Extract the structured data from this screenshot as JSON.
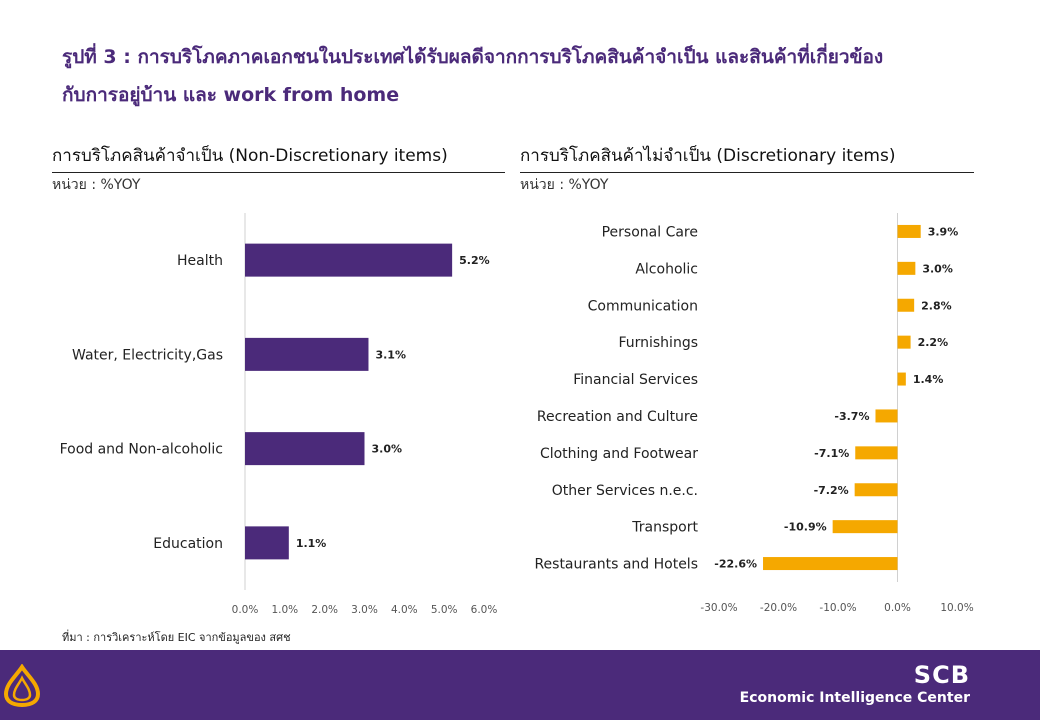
{
  "header": {
    "title_line1": "รูปที่ 3 : การบริโภคภาคเอกชนในประเทศได้รับผลดีจากการบริโภคสินค้าจำเป็น และสินค้าที่เกี่ยวข้อง",
    "title_line2": "กับการอยู่บ้าน และ work from home"
  },
  "source": "ที่มา : การวิเคราะห์โดย EIC จากข้อมูลของ สศช",
  "footer": {
    "brand": "SCB",
    "subtitle": "Economic Intelligence Center"
  },
  "colors": {
    "title": "#4b2a7a",
    "left_bar": "#4b2a7a",
    "right_bar": "#f5a800",
    "footer_bg": "#4b2a7a",
    "logo": "#f5a800"
  },
  "chart_data": [
    {
      "type": "bar",
      "orientation": "horizontal",
      "title": "การบริโภคสินค้าจำเป็น  (Non-Discretionary items)",
      "unit": "หน่วย : %YOY",
      "categories": [
        "Health",
        "Water, Electricity,Gas",
        "Food and Non-alcoholic",
        "Education"
      ],
      "values": [
        5.2,
        3.1,
        3.0,
        1.1
      ],
      "value_labels": [
        "5.2%",
        "3.1%",
        "3.0%",
        "1.1%"
      ],
      "xlim": [
        0,
        6
      ],
      "ticks": [
        "0.0%",
        "1.0%",
        "2.0%",
        "3.0%",
        "4.0%",
        "5.0%",
        "6.0%"
      ],
      "grid": false
    },
    {
      "type": "bar",
      "orientation": "horizontal",
      "title": "การบริโภคสินค้าไม่จำเป็น  (Discretionary items)",
      "unit": "หน่วย : %YOY",
      "categories": [
        "Personal Care",
        "Alcoholic",
        "Communication",
        "Furnishings",
        "Financial Services",
        "Recreation and Culture",
        "Clothing and Footwear",
        "Other Services n.e.c.",
        "Transport",
        "Restaurants and Hotels"
      ],
      "values": [
        3.9,
        3.0,
        2.8,
        2.2,
        1.4,
        -3.7,
        -7.1,
        -7.2,
        -10.9,
        -22.6
      ],
      "value_labels": [
        "3.9%",
        "3.0%",
        "2.8%",
        "2.2%",
        "1.4%",
        "-3.7%",
        "-7.1%",
        "-7.2%",
        "-10.9%",
        "-22.6%"
      ],
      "xlim": [
        -30,
        10
      ],
      "ticks": [
        "-30.0%",
        "-20.0%",
        "-10.0%",
        "0.0%",
        "10.0%"
      ],
      "grid": false
    }
  ]
}
